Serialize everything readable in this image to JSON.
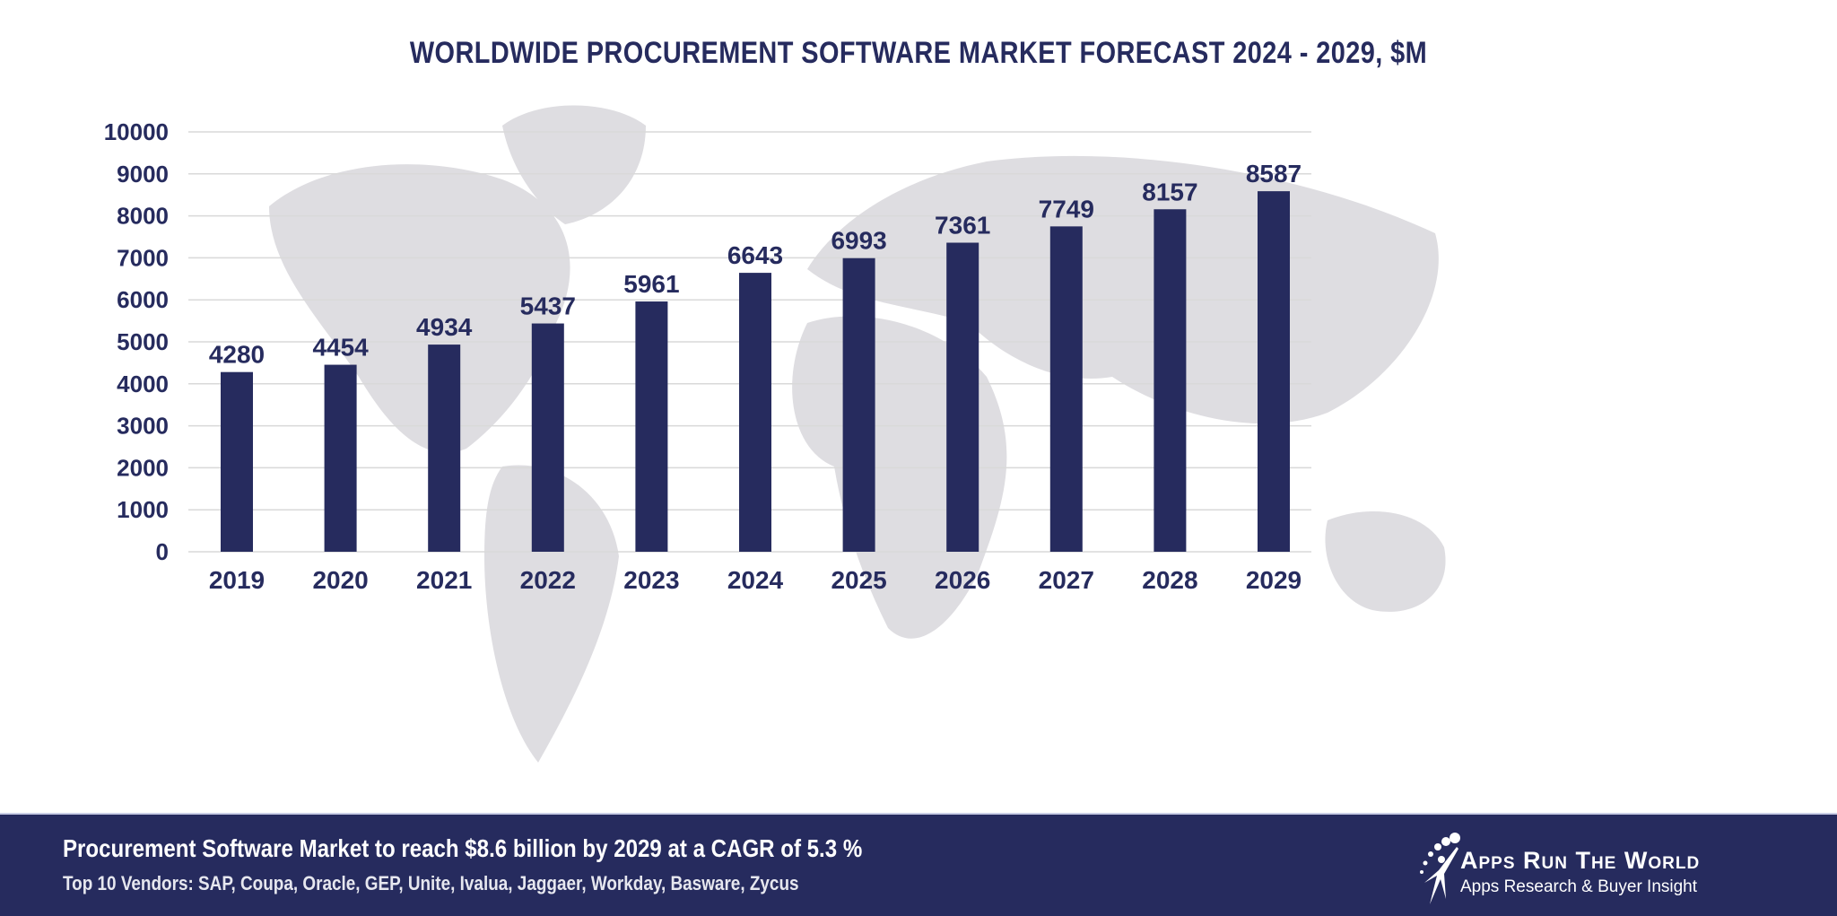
{
  "chart_data": {
    "type": "bar",
    "title": "WORLDWIDE PROCUREMENT SOFTWARE MARKET FORECAST 2024 - 2029, $M",
    "categories": [
      "2019",
      "2020",
      "2021",
      "2022",
      "2023",
      "2024",
      "2025",
      "2026",
      "2027",
      "2028",
      "2029"
    ],
    "values": [
      4280,
      4454,
      4934,
      5437,
      5961,
      6643,
      6993,
      7361,
      7749,
      8157,
      8587
    ],
    "ylim": [
      0,
      10000
    ],
    "yticks": [
      0,
      1000,
      2000,
      3000,
      4000,
      5000,
      6000,
      7000,
      8000,
      9000,
      10000
    ],
    "grid": true,
    "data_labels": true,
    "bar_color": "#262b5e",
    "background": "world map (light gray)"
  },
  "footer": {
    "headline": "Procurement Software Market to reach $8.6 billion by 2029 at a CAGR of 5.3 %",
    "vendors": "Top 10 Vendors: SAP, Coupa, Oracle, GEP, Unite, Ivalua, Jaggaer, Workday, Basware, Zycus",
    "background": "#262b5e"
  },
  "logo": {
    "name": "Apps Run The World",
    "tagline": "Apps Research & Buyer Insight"
  }
}
